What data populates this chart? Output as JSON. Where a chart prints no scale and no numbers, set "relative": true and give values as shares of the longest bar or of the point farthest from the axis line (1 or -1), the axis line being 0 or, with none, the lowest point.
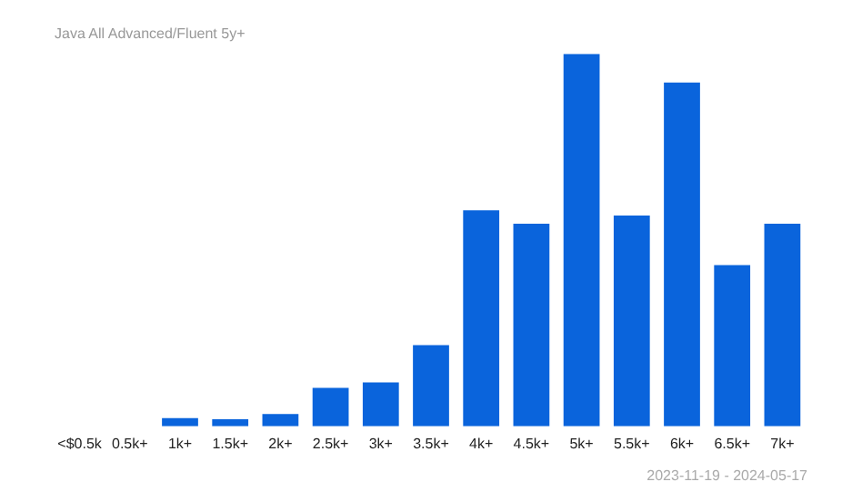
{
  "chart_data": {
    "type": "bar",
    "title": "Java All Advanced/Fluent 5y+",
    "categories": [
      "<$0.5k",
      "0.5k+",
      "1k+",
      "1.5k+",
      "2k+",
      "2.5k+",
      "3k+",
      "3.5k+",
      "4k+",
      "4.5k+",
      "5k+",
      "5.5k+",
      "6k+",
      "6.5k+",
      "7k+"
    ],
    "values": [
      0,
      0,
      0.022,
      0.019,
      0.033,
      0.103,
      0.118,
      0.218,
      0.58,
      0.544,
      1,
      0.566,
      0.923,
      0.433,
      0.544
    ],
    "color": "#0a64dc",
    "relative": true,
    "grid": false,
    "legend": false,
    "annotations": [
      "2023-11-19 - 2024-05-17"
    ]
  }
}
